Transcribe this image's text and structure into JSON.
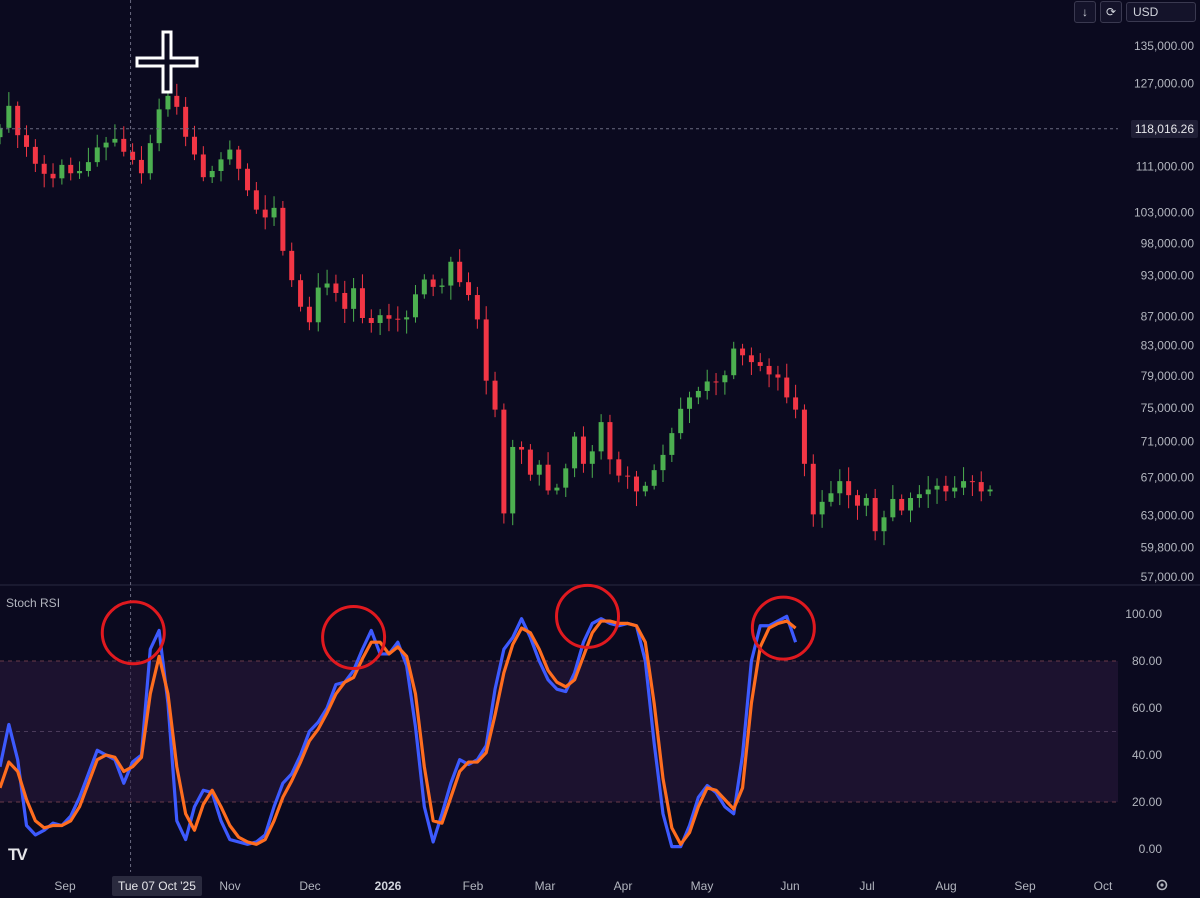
{
  "toolbar": {
    "arrow_icon": "arrow-down-icon",
    "sync_icon": "refresh-icon",
    "currency": "USD"
  },
  "crosshair": {
    "price_label": "118,016.26",
    "date_label": "Tue 07 Oct '25",
    "price_value": 118016.26,
    "date": "2025-10-07"
  },
  "indicator": {
    "name": "Stoch RSI"
  },
  "logo": "TV",
  "colors": {
    "background": "#0b0a1f",
    "up_candle": "#4caf50",
    "down_candle": "#f23645",
    "k_line": "#3d5afe",
    "d_line": "#ff6d1f",
    "highlight_circle": "#e0191f",
    "band_fill": "#2b1a3d"
  },
  "chart_data": [
    {
      "type": "candlestick",
      "title": "",
      "xlabel": "",
      "ylabel": "",
      "scale": "log",
      "ylim": [
        57000,
        135000
      ],
      "y_ticks": [
        {
          "value": 135000,
          "label": "135,000.00"
        },
        {
          "value": 127000,
          "label": "127,000.00"
        },
        {
          "value": 111000,
          "label": "111,000.00"
        },
        {
          "value": 103000,
          "label": "103,000.00"
        },
        {
          "value": 98000,
          "label": "98,000.00"
        },
        {
          "value": 93000,
          "label": "93,000.00"
        },
        {
          "value": 87000,
          "label": "87,000.00"
        },
        {
          "value": 83000,
          "label": "83,000.00"
        },
        {
          "value": 79000,
          "label": "79,000.00"
        },
        {
          "value": 75000,
          "label": "75,000.00"
        },
        {
          "value": 71000,
          "label": "71,000.00"
        },
        {
          "value": 67000,
          "label": "67,000.00"
        },
        {
          "value": 63000,
          "label": "63,000.00"
        },
        {
          "value": 59800,
          "label": "59,800.00"
        },
        {
          "value": 57000,
          "label": "57,000.00"
        }
      ],
      "x_ticks": [
        "Sep",
        "Oct",
        "Nov",
        "Dec",
        "2026",
        "Feb",
        "Mar",
        "Apr",
        "May",
        "Jun",
        "Jul",
        "Aug",
        "Sep",
        "Oct"
      ],
      "x_range_days": [
        0,
        390
      ],
      "x_origin_date": "2025-08-20",
      "candle_spacing_days": 3.25,
      "close": [
        118200,
        122500,
        116800,
        114600,
        111500,
        109700,
        108900,
        111300,
        109800,
        110200,
        111800,
        114500,
        115400,
        116100,
        113700,
        112200,
        109800,
        115300,
        121800,
        124500,
        122300,
        116500,
        113200,
        109100,
        110200,
        112300,
        114100,
        110600,
        106800,
        103500,
        102200,
        103800,
        96800,
        92300,
        88400,
        86200,
        91200,
        91800,
        90400,
        88100,
        91100,
        86800,
        86100,
        87200,
        86700,
        86600,
        86900,
        90200,
        92400,
        91300,
        91500,
        95100,
        92000,
        90100,
        86600,
        78400,
        74800,
        63200,
        70400,
        70100,
        67300,
        68400,
        65600,
        65900,
        68000,
        71600,
        68500,
        69900,
        73300,
        69000,
        67200,
        67100,
        65500,
        66100,
        67800,
        69500,
        72000,
        74900,
        76300,
        77100,
        78300,
        78200,
        79100,
        82600,
        81700,
        80800,
        80300,
        79200,
        78800,
        76300,
        74800,
        68500,
        63100,
        64400,
        65300,
        66600,
        65100,
        64000,
        64800,
        61400,
        62800,
        64700,
        63500,
        64800,
        65200,
        65700,
        66100,
        65500,
        65900,
        66600,
        66500,
        65500,
        65700
      ],
      "x_labels_note": "",
      "series": []
    },
    {
      "type": "line",
      "title": "Stoch RSI",
      "xlabel": "",
      "ylabel": "",
      "ylim": [
        0,
        100
      ],
      "y_ticks": [
        {
          "value": 100,
          "label": "100.00"
        },
        {
          "value": 80,
          "label": "80.00"
        },
        {
          "value": 60,
          "label": "60.00"
        },
        {
          "value": 40,
          "label": "40.00"
        },
        {
          "value": 20,
          "label": "20.00"
        },
        {
          "value": 0,
          "label": "0.00"
        }
      ],
      "bands": [
        20,
        50,
        80
      ],
      "series": [
        {
          "values": [
            35,
            53,
            38,
            10,
            6,
            8,
            11,
            10,
            14,
            22,
            32,
            42,
            40,
            38,
            28,
            37,
            40,
            85,
            93,
            62,
            12,
            4,
            18,
            25,
            24,
            12,
            4,
            3,
            2,
            3,
            6,
            18,
            28,
            32,
            40,
            50,
            54,
            60,
            70,
            71,
            76,
            85,
            93,
            83,
            83,
            88,
            78,
            52,
            18,
            3,
            15,
            28,
            38,
            36,
            38,
            44,
            68,
            85,
            90,
            98,
            90,
            80,
            72,
            68,
            67,
            75,
            88,
            96,
            98,
            96,
            95,
            96,
            95,
            80,
            45,
            15,
            1,
            1,
            10,
            22,
            27,
            24,
            18,
            15,
            40,
            80,
            95,
            95,
            97,
            99,
            88
          ]
        },
        {
          "values": [
            26,
            37,
            33,
            21,
            12,
            9,
            10,
            10,
            12,
            18,
            28,
            38,
            40,
            39,
            33,
            35,
            39,
            66,
            82,
            66,
            35,
            15,
            8,
            19,
            25,
            18,
            10,
            5,
            3,
            2,
            4,
            12,
            22,
            29,
            37,
            46,
            51,
            58,
            66,
            71,
            73,
            81,
            88,
            88,
            83,
            86,
            82,
            66,
            35,
            12,
            11,
            22,
            33,
            37,
            37,
            41,
            57,
            75,
            87,
            94,
            92,
            85,
            76,
            71,
            69,
            72,
            82,
            92,
            97,
            97,
            96,
            96,
            95,
            88,
            62,
            30,
            9,
            2,
            7,
            18,
            26,
            25,
            21,
            17,
            26,
            62,
            86,
            94,
            96,
            97,
            94
          ]
        }
      ],
      "highlight_circles": [
        {
          "day": 49,
          "value": 92
        },
        {
          "day": 130,
          "value": 90
        },
        {
          "day": 216,
          "value": 99
        },
        {
          "day": 288,
          "value": 94
        }
      ]
    }
  ]
}
